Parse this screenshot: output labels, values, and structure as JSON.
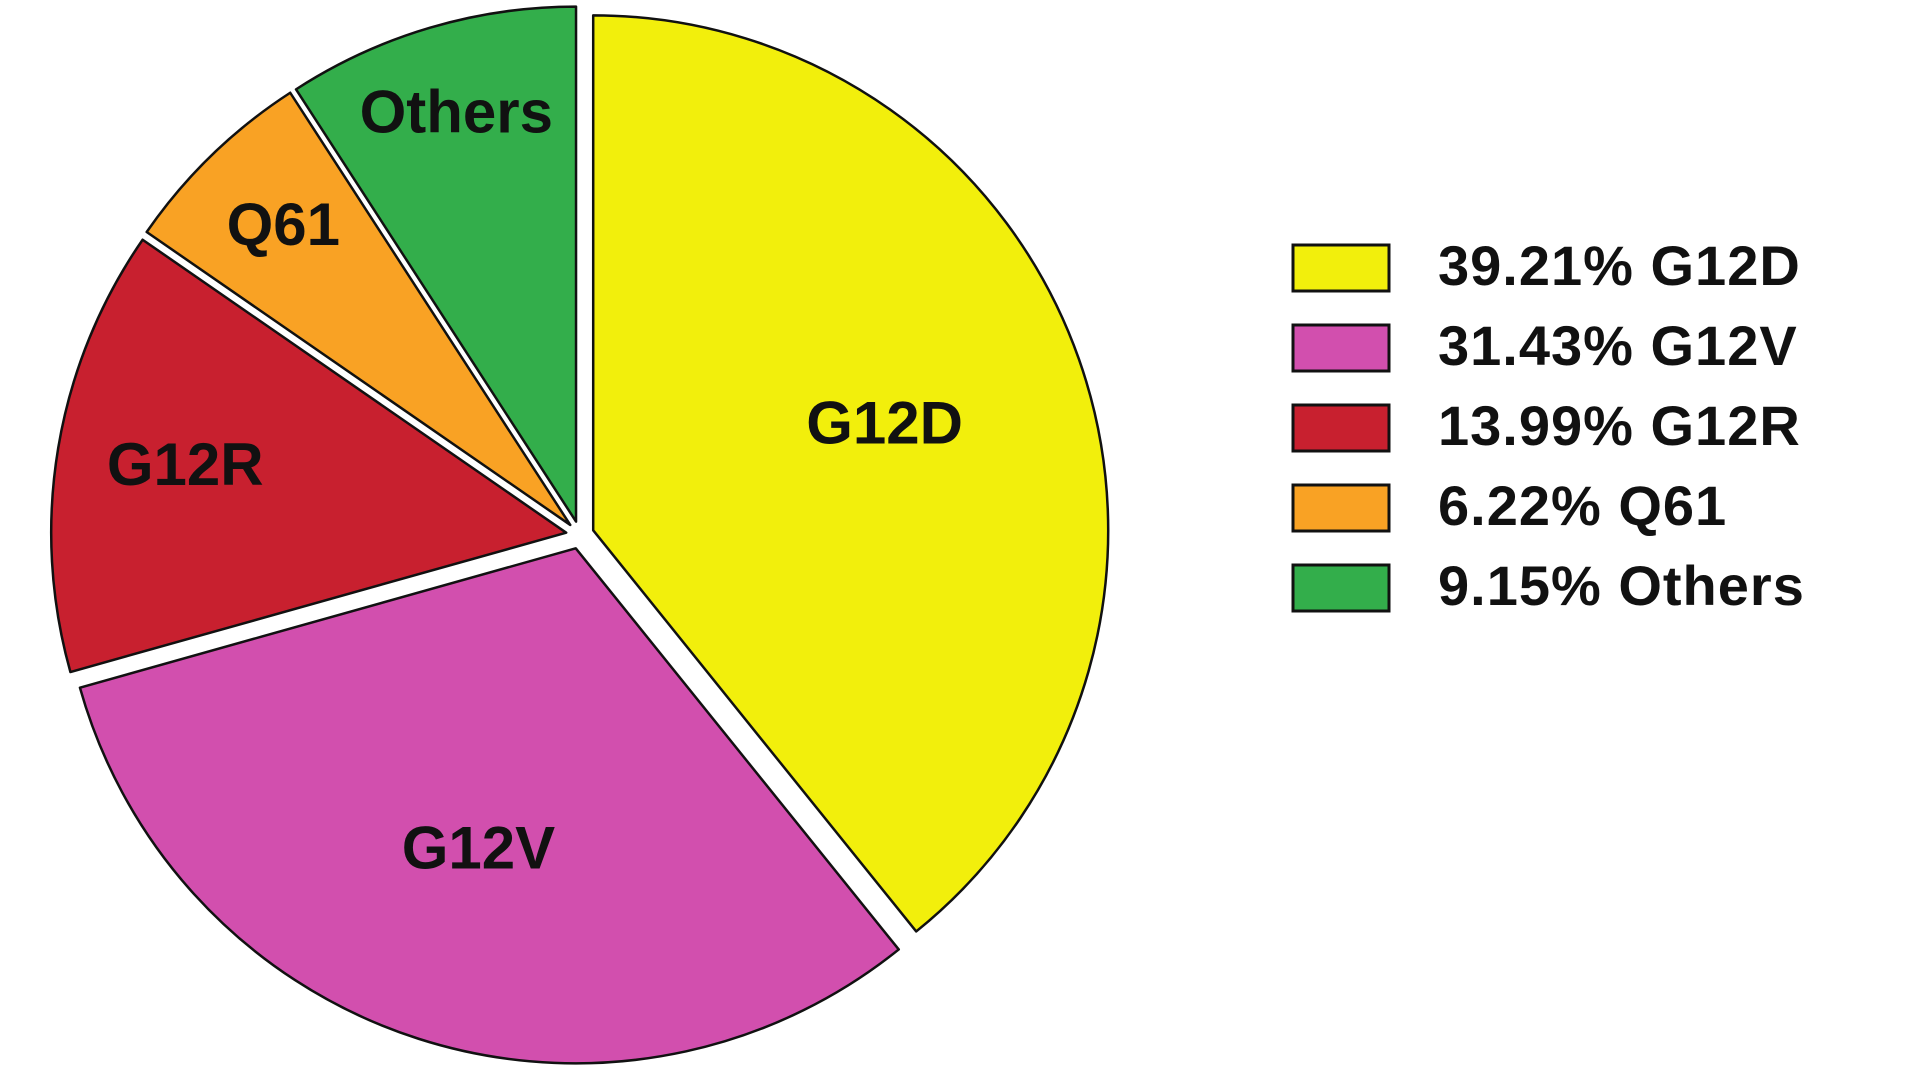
{
  "chart_data": {
    "type": "pie",
    "categories": [
      "G12D",
      "G12V",
      "G12R",
      "Q61",
      "Others"
    ],
    "values": [
      39.21,
      31.43,
      13.99,
      6.22,
      9.15
    ],
    "legend_labels": [
      "39.21% G12D",
      "31.43% G12V",
      "13.99% G12R",
      "6.22% Q61",
      "9.15% Others"
    ],
    "colors": [
      "#f2ef0c",
      "#d24fae",
      "#c8202f",
      "#f9a224",
      "#33ae4b"
    ],
    "legend_position": "right"
  }
}
